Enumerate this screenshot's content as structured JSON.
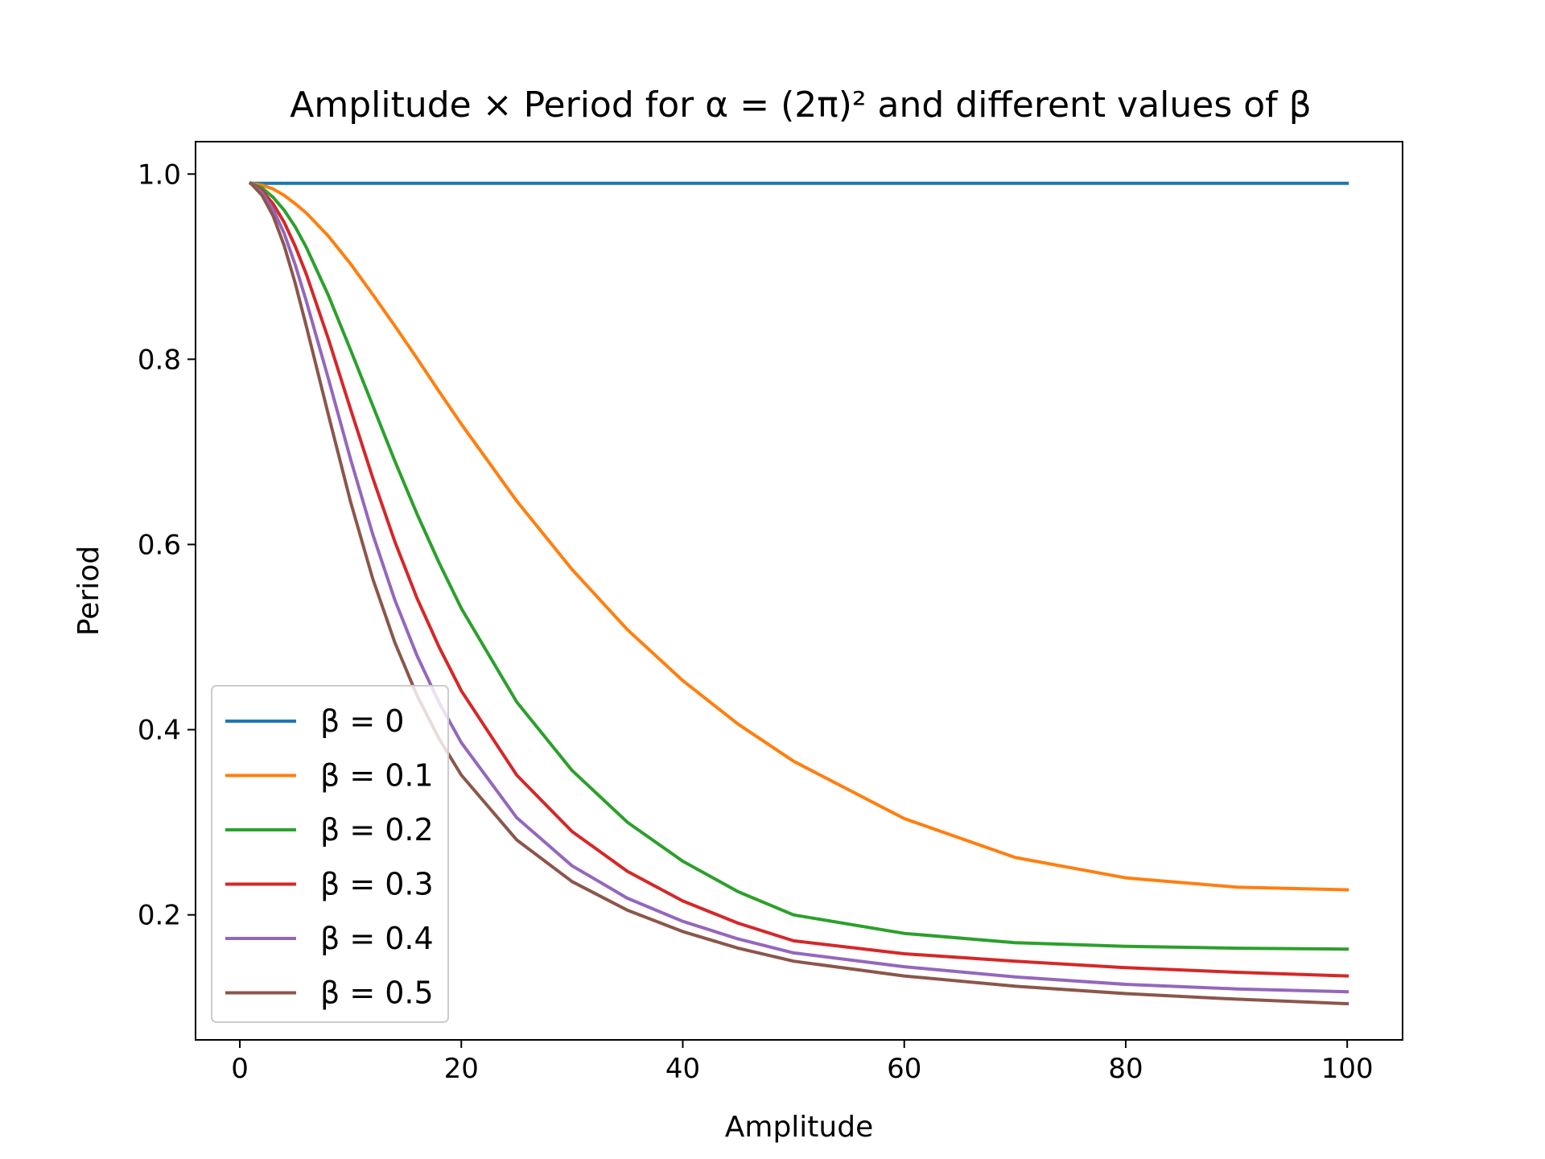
{
  "chart_data": {
    "type": "line",
    "title": "Amplitude × Period for α = (2π)² and different values of β",
    "xlabel": "Amplitude",
    "ylabel": "Period",
    "xlim": [
      -4,
      105
    ],
    "ylim": [
      0.065,
      1.035
    ],
    "xticks": [
      0,
      20,
      40,
      60,
      80,
      100
    ],
    "yticks": [
      0.2,
      0.4,
      0.6,
      0.8,
      1.0
    ],
    "xtick_labels": [
      "0",
      "20",
      "40",
      "60",
      "80",
      "100"
    ],
    "ytick_labels": [
      "0.2",
      "0.4",
      "0.6",
      "0.8",
      "1.0"
    ],
    "grid": false,
    "legend_position": "lower-left",
    "x": [
      1,
      2,
      3,
      4,
      5,
      6,
      8,
      10,
      12,
      14,
      16,
      18,
      20,
      25,
      30,
      35,
      40,
      45,
      50,
      60,
      70,
      80,
      90,
      100
    ],
    "series": [
      {
        "name": "β = 0",
        "color": "#1f77b4",
        "values": [
          0.99,
          0.99,
          0.99,
          0.99,
          0.99,
          0.99,
          0.99,
          0.99,
          0.99,
          0.99,
          0.99,
          0.99,
          0.99,
          0.99,
          0.99,
          0.99,
          0.99,
          0.99,
          0.99,
          0.99,
          0.99,
          0.99,
          0.99,
          0.99
        ]
      },
      {
        "name": "β = 0.1",
        "color": "#ff7f0e",
        "values": [
          0.99,
          0.988,
          0.984,
          0.977,
          0.968,
          0.958,
          0.933,
          0.903,
          0.87,
          0.836,
          0.801,
          0.765,
          0.73,
          0.647,
          0.573,
          0.508,
          0.453,
          0.406,
          0.366,
          0.304,
          0.262,
          0.24,
          0.23,
          0.227
        ]
      },
      {
        "name": "β = 0.2",
        "color": "#2ca02c",
        "values": [
          0.99,
          0.985,
          0.975,
          0.961,
          0.943,
          0.921,
          0.869,
          0.81,
          0.75,
          0.69,
          0.633,
          0.58,
          0.531,
          0.43,
          0.356,
          0.3,
          0.258,
          0.225,
          0.2,
          0.18,
          0.17,
          0.166,
          0.164,
          0.163
        ]
      },
      {
        "name": "β = 0.3",
        "color": "#d62728",
        "values": [
          0.99,
          0.982,
          0.968,
          0.948,
          0.922,
          0.892,
          0.822,
          0.746,
          0.672,
          0.603,
          0.542,
          0.489,
          0.442,
          0.351,
          0.29,
          0.247,
          0.215,
          0.191,
          0.172,
          0.158,
          0.15,
          0.143,
          0.138,
          0.134
        ]
      },
      {
        "name": "β = 0.4",
        "color": "#9467bd",
        "values": [
          0.99,
          0.98,
          0.962,
          0.936,
          0.902,
          0.863,
          0.779,
          0.692,
          0.611,
          0.54,
          0.48,
          0.429,
          0.386,
          0.305,
          0.253,
          0.218,
          0.193,
          0.174,
          0.159,
          0.144,
          0.133,
          0.125,
          0.12,
          0.117
        ]
      },
      {
        "name": "β = 0.5",
        "color": "#8c564b",
        "values": [
          0.99,
          0.977,
          0.955,
          0.923,
          0.882,
          0.836,
          0.74,
          0.646,
          0.563,
          0.494,
          0.437,
          0.39,
          0.351,
          0.281,
          0.236,
          0.205,
          0.182,
          0.164,
          0.15,
          0.134,
          0.123,
          0.115,
          0.109,
          0.104
        ]
      }
    ]
  }
}
